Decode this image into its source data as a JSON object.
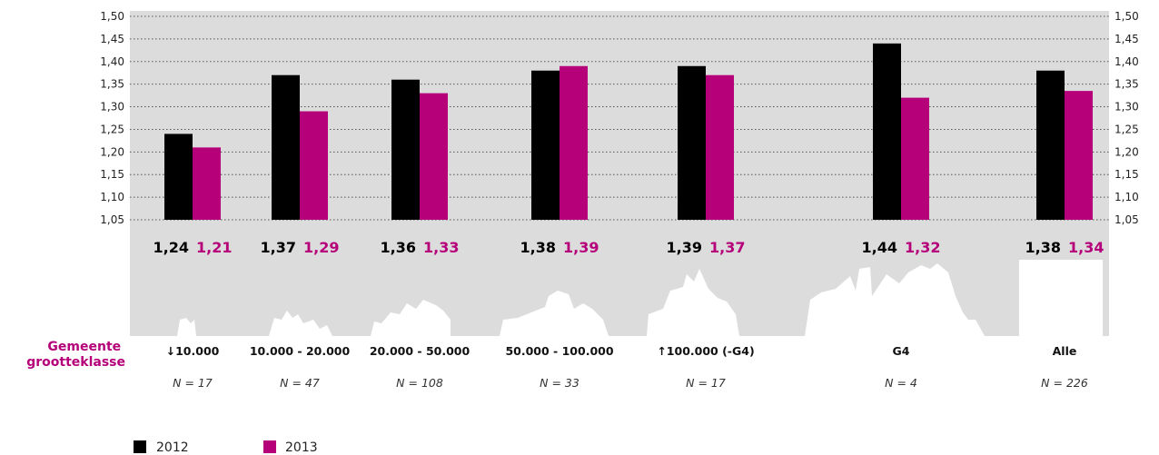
{
  "chart_data": {
    "type": "bar",
    "categories": [
      "↓10.000",
      "10.000 - 20.000",
      "20.000 - 50.000",
      "50.000 - 100.000",
      "↑100.000 (-G4)",
      "G4",
      "Alle"
    ],
    "n_labels": [
      "N = 17",
      "N = 47",
      "N = 108",
      "N = 33",
      "N = 17",
      "N = 4",
      "N = 226"
    ],
    "series": [
      {
        "name": "2012",
        "color": "#000000",
        "values": [
          1.24,
          1.37,
          1.36,
          1.38,
          1.39,
          1.44,
          1.38
        ],
        "labels": [
          "1,24",
          "1,37",
          "1,36",
          "1,38",
          "1,39",
          "1,44",
          "1,38"
        ]
      },
      {
        "name": "2013",
        "color": "#b5007a",
        "values": [
          1.21,
          1.29,
          1.33,
          1.39,
          1.37,
          1.32,
          1.335
        ],
        "labels": [
          "1,21",
          "1,29",
          "1,33",
          "1,39",
          "1,37",
          "1,32",
          "1,34"
        ]
      }
    ],
    "ylim": [
      1.05,
      1.5
    ],
    "yticks": [
      "1,50",
      "1,45",
      "1,40",
      "1,35",
      "1,30",
      "1,25",
      "1,20",
      "1,15",
      "1,10",
      "1,05"
    ],
    "ytick_values": [
      1.5,
      1.45,
      1.4,
      1.35,
      1.3,
      1.25,
      1.2,
      1.15,
      1.1,
      1.05
    ],
    "category_axis_title": "Gemeente grootteklasse",
    "grid": true,
    "legend_position": "bottom-left",
    "background_color": "#dcdcdc",
    "accent_color": "#b5007a"
  }
}
